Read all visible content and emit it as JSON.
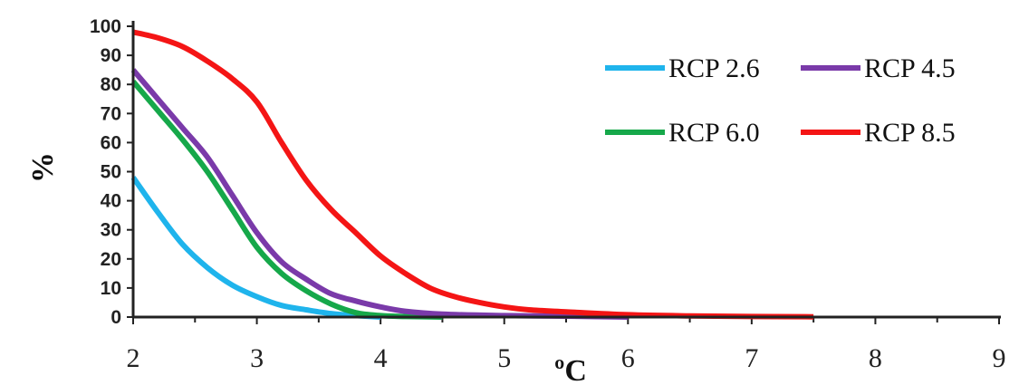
{
  "chart_data": {
    "type": "line",
    "title": "",
    "xlabel": "ºC",
    "ylabel": "%",
    "xlim": [
      2,
      9
    ],
    "ylim": [
      0,
      100
    ],
    "xticks": [
      "2",
      "3",
      "4",
      "5",
      "6",
      "7",
      "8",
      "9"
    ],
    "yticks": [
      "0",
      "10",
      "20",
      "30",
      "40",
      "50",
      "60",
      "70",
      "80",
      "90",
      "100"
    ],
    "grid": false,
    "legend_position": "top-right",
    "series": [
      {
        "name": "RCP 2.6",
        "color": "#1fb4ec",
        "x": [
          2.0,
          2.2,
          2.4,
          2.6,
          2.8,
          3.0,
          3.2,
          3.4,
          3.6,
          3.8,
          4.0
        ],
        "y": [
          48,
          36,
          25,
          17,
          11,
          7,
          4,
          2.5,
          1.2,
          0.5,
          0
        ]
      },
      {
        "name": "RCP 4.5",
        "color": "#7a3aa9",
        "x": [
          2.0,
          2.2,
          2.4,
          2.6,
          2.8,
          3.0,
          3.2,
          3.4,
          3.6,
          3.8,
          4.0,
          4.2,
          4.5,
          5.0,
          5.5,
          6.0
        ],
        "y": [
          85,
          75,
          65,
          55,
          42,
          29,
          19,
          13,
          8,
          5.5,
          3.5,
          2,
          1,
          0.5,
          0.3,
          0
        ]
      },
      {
        "name": "RCP 6.0",
        "color": "#16a84a",
        "x": [
          2.0,
          2.2,
          2.4,
          2.6,
          2.8,
          3.0,
          3.2,
          3.4,
          3.6,
          3.8,
          4.0,
          4.2,
          4.5
        ],
        "y": [
          81,
          71,
          61,
          50,
          37,
          24,
          15,
          9,
          4.5,
          1.5,
          0.5,
          0.2,
          0
        ]
      },
      {
        "name": "RCP 8.5",
        "color": "#f41515",
        "x": [
          2.0,
          2.2,
          2.4,
          2.6,
          2.8,
          3.0,
          3.2,
          3.4,
          3.6,
          3.8,
          4.0,
          4.2,
          4.4,
          4.6,
          4.8,
          5.0,
          5.2,
          5.5,
          6.0,
          6.5,
          7.0,
          7.5
        ],
        "y": [
          98,
          96,
          93,
          88,
          82,
          74,
          60,
          47,
          37,
          29,
          21,
          15,
          10,
          7,
          5,
          3.5,
          2.5,
          1.8,
          0.8,
          0.4,
          0.2,
          0.1
        ]
      }
    ]
  }
}
